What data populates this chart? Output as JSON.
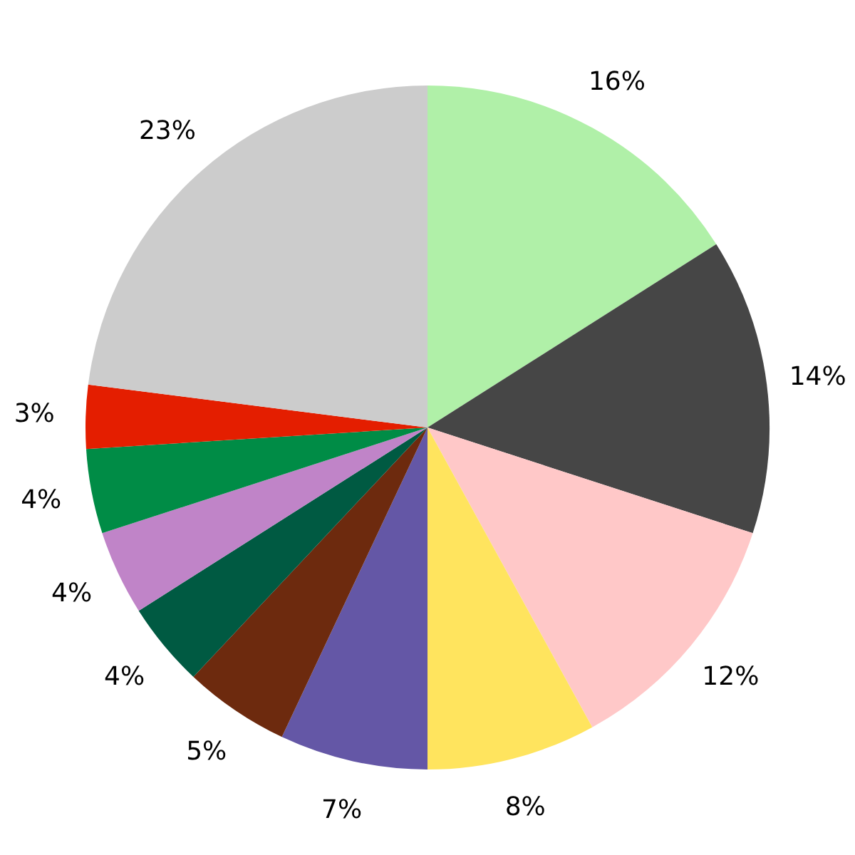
{
  "chart_data": {
    "type": "pie",
    "categories": [
      null,
      null,
      null,
      null,
      null,
      null,
      null,
      null,
      null,
      null,
      null
    ],
    "values": [
      16,
      14,
      12,
      8,
      7,
      5,
      4,
      4,
      4,
      3,
      23
    ],
    "value_labels": [
      "16%",
      "14%",
      "12%",
      "8%",
      "7%",
      "5%",
      "4%",
      "4%",
      "4%",
      "3%",
      "23%"
    ],
    "colors": [
      "#b0f0a8",
      "#464646",
      "#ffc8c8",
      "#ffe45e",
      "#6457a6",
      "#6d2a0e",
      "#005a42",
      "#c084c8",
      "#008c46",
      "#e41e00",
      "#cccccc"
    ],
    "legend": false
  }
}
